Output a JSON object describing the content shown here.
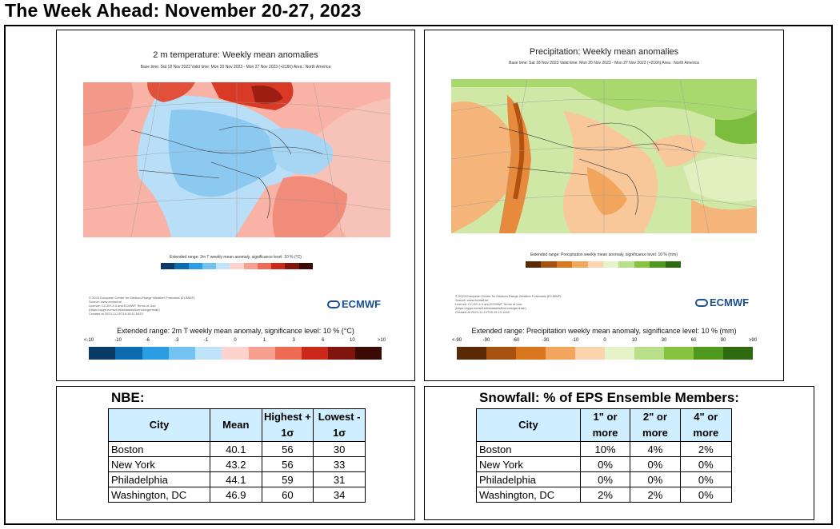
{
  "page": {
    "title": "The Week Ahead: November 20-27, 2023"
  },
  "temp_map": {
    "title": "2 m temperature: Weekly mean anomalies",
    "subtitle": "Base time: Sat 18 Nov 2023 Valid time: Mon 20 Nov 2023 - Mon 27 Nov 2023 (+216h) Area : North America",
    "small_colorbar_label": "Extended range: 2m T weekly mean anomaly, significance level: 10 % (°C)",
    "credits": [
      "© 2023 European Centre for Medium-Range Weather Forecasts (ECMWF)",
      "Source: www.ecmwf.int",
      "Licence: CC-BY-4.0 and ECMWF Terms of Use (https://apps.ecmwf.int/datasets/licences/general/)",
      "Created at 2023-11-19T16:15:11.5423"
    ],
    "logo": "ECMWF",
    "colorbar_title": "Extended range: 2m T weekly mean anomaly, significance level: 10 % (°C)",
    "ticks": [
      "<-10",
      "-10",
      "-6",
      "-3",
      "-1",
      "0",
      "1",
      "3",
      "6",
      "10",
      ">10"
    ],
    "colors": [
      "#0a3a66",
      "#0f6bb0",
      "#2b9ee3",
      "#73c2f0",
      "#bfe3f8",
      "#ffd3cd",
      "#f7a090",
      "#ee6a55",
      "#c9281a",
      "#7f150c",
      "#3a0a05"
    ]
  },
  "precip_map": {
    "title": "Precipitation: Weekly mean anomalies",
    "subtitle": "Base time: Sat 18 Nov 2023 Valid time: Mon 20 Nov 2023 - Mon 27 Nov 2023 (+216h) Area : North America",
    "small_colorbar_label": "Extended range: Precipitation weekly mean anomaly, significance level: 10 % (mm)",
    "credits": [
      "© 2023 European Centre for Medium-Range Weather Forecasts (ECMWF)",
      "Source: www.ecmwf.int",
      "Licence: CC-BY-4.0 and ECMWF Terms of Use (https://apps.ecmwf.int/datasets/licences/general/)",
      "Created at 2023-11-19T16:19:13.1040"
    ],
    "logo": "ECMWF",
    "colorbar_title": "Extended range: Precipitation weekly mean anomaly, significance level: 10 % (mm)",
    "ticks": [
      "<-90",
      "-90",
      "-60",
      "-30",
      "-10",
      "0",
      "10",
      "30",
      "60",
      "90",
      ">90"
    ],
    "colors": [
      "#5a2a05",
      "#a8520f",
      "#d9771f",
      "#f2a55c",
      "#fbd3ad",
      "#e6f2c8",
      "#b8df8a",
      "#86c440",
      "#4f9a1e",
      "#2e6b10"
    ]
  },
  "nbe": {
    "title": "NBE:",
    "headers": [
      "City",
      "Mean",
      "Highest + 1σ",
      "Lowest - 1σ"
    ],
    "rows": [
      [
        "Boston",
        "40.1",
        "56",
        "30"
      ],
      [
        "New York",
        "43.2",
        "56",
        "33"
      ],
      [
        "Philadelphia",
        "44.1",
        "59",
        "31"
      ],
      [
        "Washington, DC",
        "46.9",
        "60",
        "34"
      ]
    ]
  },
  "snow": {
    "title": "Snowfall: % of EPS Ensemble Members:",
    "headers": [
      "City",
      "1\" or more",
      "2\" or more",
      "4\" or more"
    ],
    "rows": [
      [
        "Boston",
        "10%",
        "4%",
        "2%"
      ],
      [
        "New York",
        "0%",
        "0%",
        "0%"
      ],
      [
        "Philadelphia",
        "0%",
        "0%",
        "0%"
      ],
      [
        "Washington, DC",
        "2%",
        "2%",
        "0%"
      ]
    ]
  }
}
